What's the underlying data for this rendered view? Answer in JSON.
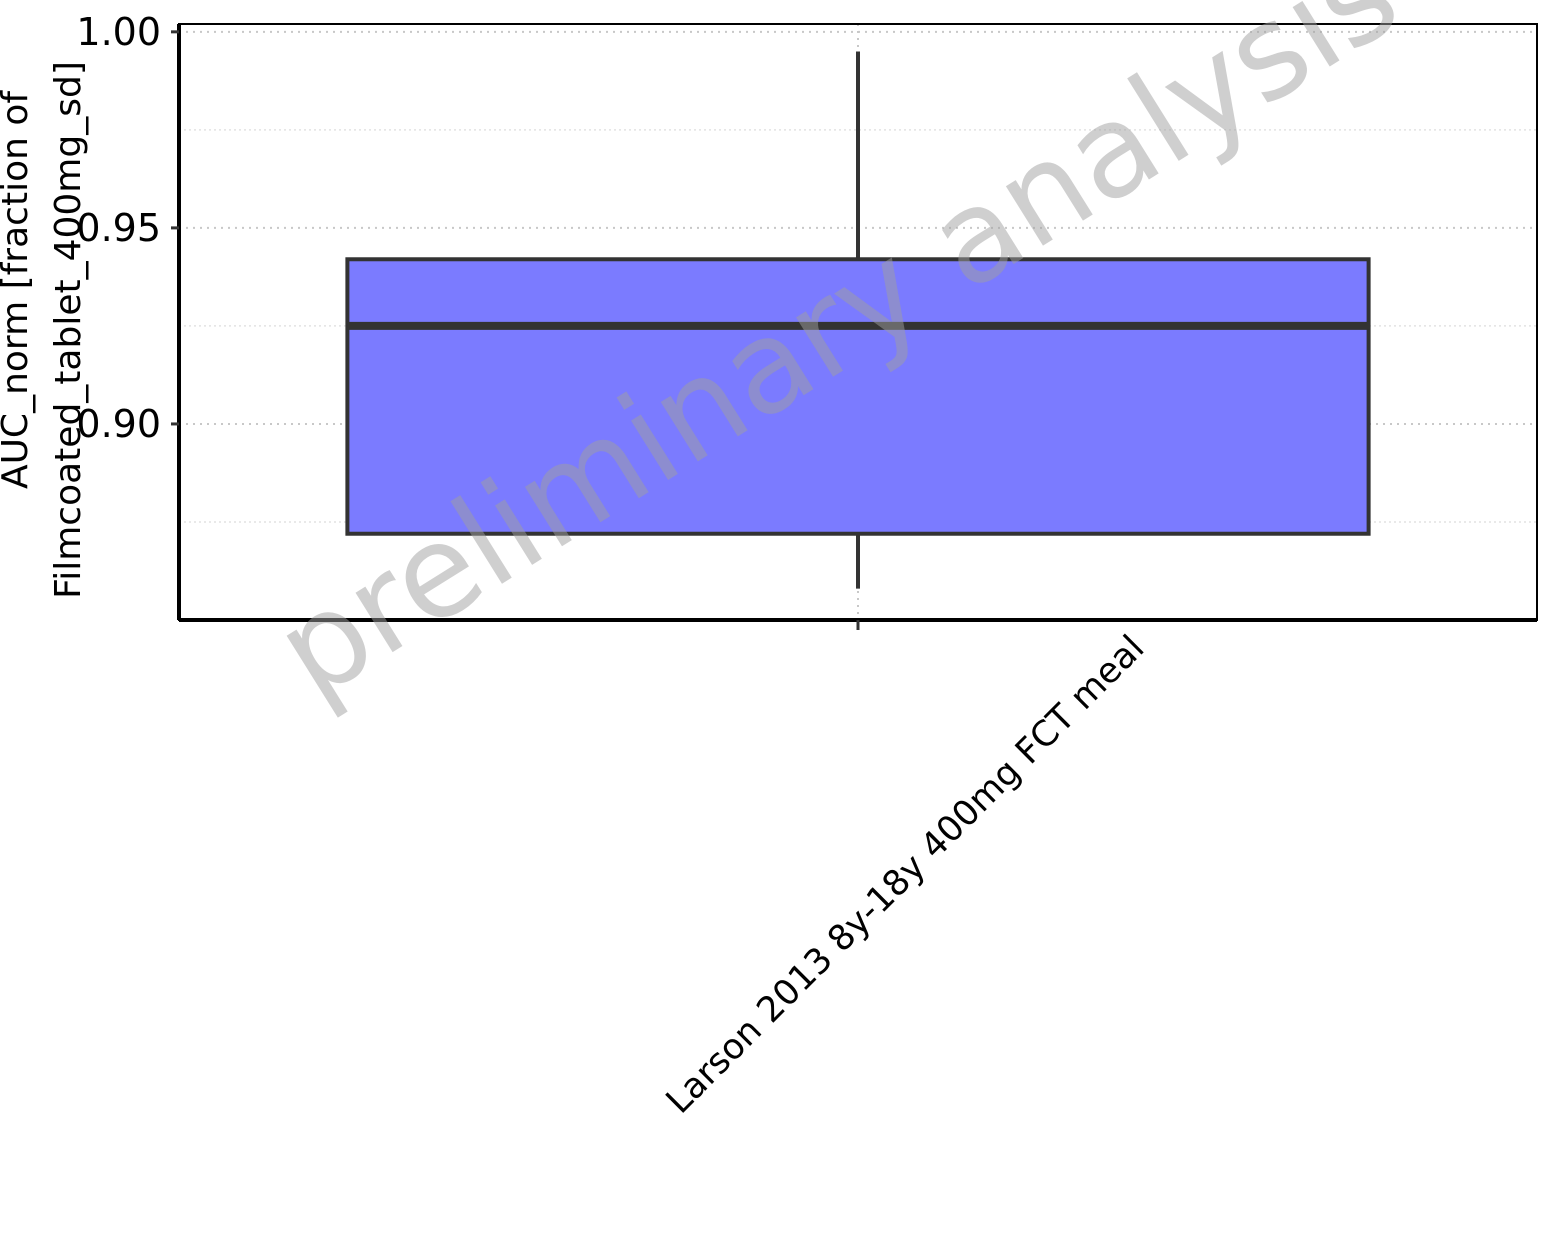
{
  "chart_data": {
    "type": "box",
    "categories": [
      "Larson 2013 8y-18y 400mg FCT meal"
    ],
    "boxes": [
      {
        "category": "Larson 2013 8y-18y 400mg FCT meal",
        "whisker_low": 0.858,
        "q1": 0.872,
        "median": 0.925,
        "q3": 0.942,
        "whisker_high": 0.995
      }
    ],
    "ylabel_line1": "AUC_norm [fraction of",
    "ylabel_line2": "Filmcoated_tablet_400mg_sd]",
    "xlabel": "",
    "ylim": [
      0.85,
      1.002
    ],
    "yticks": [
      0.9,
      0.95,
      1.0
    ],
    "ytick_labels": [
      "0.90",
      "0.95",
      "1.00"
    ],
    "minor_yticks": [
      0.875,
      0.925,
      0.975
    ],
    "watermark": "preliminary analysis",
    "box_color": "#7b7bff",
    "line_color": "#333333"
  }
}
